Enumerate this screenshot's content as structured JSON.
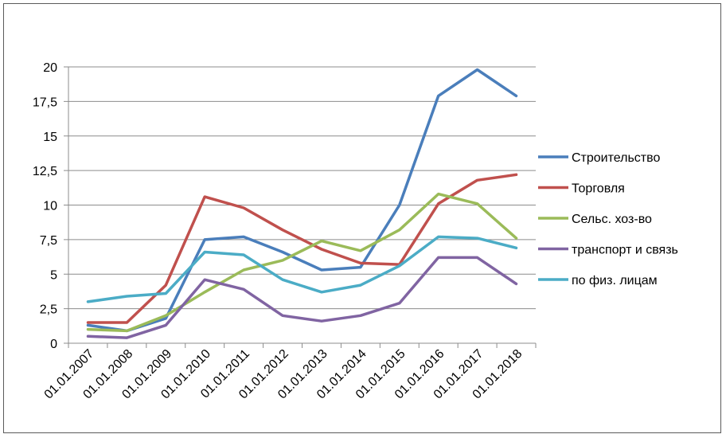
{
  "chart_data": {
    "type": "line",
    "title": "",
    "xlabel": "",
    "ylabel": "",
    "categories": [
      "01.01.2007",
      "01.01.2008",
      "01.01.2009",
      "01.01.2010",
      "01.01.2011",
      "01.01.2012",
      "01.01.2013",
      "01.01.2014",
      "01.01.2015",
      "01.01.2016",
      "01.01.2017",
      "01.01.2018"
    ],
    "yticks": [
      "0",
      "2,5",
      "5",
      "7,5",
      "10",
      "12,5",
      "15",
      "17,5",
      "20"
    ],
    "ylim": [
      0,
      20
    ],
    "grid": true,
    "legend_position": "right",
    "series": [
      {
        "name": "Строительство",
        "color": "#4a7ebb",
        "values": [
          1.3,
          0.9,
          1.8,
          7.5,
          7.7,
          6.6,
          5.3,
          5.5,
          10.0,
          17.9,
          19.8,
          17.9
        ]
      },
      {
        "name": "Торговля",
        "color": "#c0504d",
        "values": [
          1.5,
          1.5,
          4.2,
          10.6,
          9.8,
          8.2,
          6.8,
          5.8,
          5.7,
          10.1,
          11.8,
          12.2
        ]
      },
      {
        "name": "Сельс. хоз-во",
        "color": "#9bbb59",
        "values": [
          1.0,
          0.9,
          2.0,
          3.7,
          5.3,
          6.0,
          7.4,
          6.7,
          8.2,
          10.8,
          10.1,
          7.6
        ]
      },
      {
        "name": "транспорт и связь",
        "color": "#8064a2",
        "values": [
          0.5,
          0.4,
          1.3,
          4.6,
          3.9,
          2.0,
          1.6,
          2.0,
          2.9,
          6.2,
          6.2,
          4.3
        ]
      },
      {
        "name": "по физ. лицам",
        "color": "#4bacc6",
        "values": [
          3.0,
          3.4,
          3.6,
          6.6,
          6.4,
          4.6,
          3.7,
          4.2,
          5.6,
          7.7,
          7.6,
          6.9
        ]
      }
    ]
  }
}
